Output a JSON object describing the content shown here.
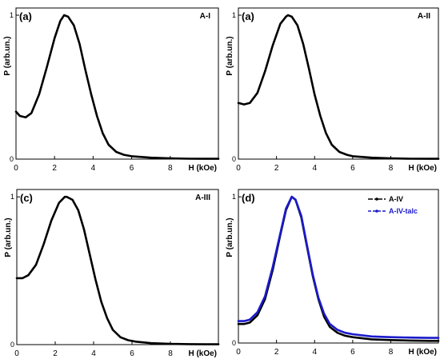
{
  "chart_data": [
    {
      "type": "line",
      "panel_label": "(a)",
      "sample_label": "A-I",
      "xlabel": "H (kOe)",
      "ylabel": "P (arb.un.)",
      "x_ticks": [
        "0",
        "2",
        "4",
        "6",
        "8"
      ],
      "y_ticks": [
        "0",
        "1"
      ],
      "xlim": [
        0,
        10.5
      ],
      "ylim": [
        0,
        1.05
      ],
      "legend": "none",
      "series": [
        {
          "color": "#000000",
          "points": [
            [
              0,
              0.33
            ],
            [
              0.2,
              0.3
            ],
            [
              0.5,
              0.29
            ],
            [
              0.8,
              0.32
            ],
            [
              1.2,
              0.45
            ],
            [
              1.6,
              0.64
            ],
            [
              2.0,
              0.84
            ],
            [
              2.3,
              0.96
            ],
            [
              2.5,
              1.0
            ],
            [
              2.7,
              0.99
            ],
            [
              3.0,
              0.93
            ],
            [
              3.3,
              0.8
            ],
            [
              3.6,
              0.62
            ],
            [
              3.9,
              0.45
            ],
            [
              4.2,
              0.3
            ],
            [
              4.5,
              0.18
            ],
            [
              4.8,
              0.1
            ],
            [
              5.2,
              0.05
            ],
            [
              5.6,
              0.03
            ],
            [
              6.0,
              0.02
            ],
            [
              7.0,
              0.01
            ],
            [
              8.0,
              0.005
            ],
            [
              9.0,
              0.003
            ],
            [
              10.0,
              0.002
            ],
            [
              10.5,
              0.002
            ]
          ]
        }
      ]
    },
    {
      "type": "line",
      "panel_label": "(a)",
      "sample_label": "A-II",
      "xlabel": "H (kOe)",
      "ylabel": "P (arb.un.)",
      "x_ticks": [
        "0",
        "2",
        "4",
        "6",
        "8"
      ],
      "y_ticks": [
        "0",
        "1"
      ],
      "xlim": [
        0,
        10.5
      ],
      "ylim": [
        0,
        1.05
      ],
      "legend": "none",
      "series": [
        {
          "color": "#000000",
          "points": [
            [
              0,
              0.39
            ],
            [
              0.3,
              0.38
            ],
            [
              0.6,
              0.39
            ],
            [
              1.0,
              0.46
            ],
            [
              1.4,
              0.61
            ],
            [
              1.8,
              0.79
            ],
            [
              2.2,
              0.94
            ],
            [
              2.5,
              0.99
            ],
            [
              2.6,
              1.0
            ],
            [
              2.8,
              0.99
            ],
            [
              3.1,
              0.93
            ],
            [
              3.4,
              0.8
            ],
            [
              3.7,
              0.63
            ],
            [
              4.0,
              0.45
            ],
            [
              4.3,
              0.3
            ],
            [
              4.6,
              0.18
            ],
            [
              4.9,
              0.1
            ],
            [
              5.3,
              0.05
            ],
            [
              5.7,
              0.03
            ],
            [
              6.0,
              0.02
            ],
            [
              7.0,
              0.01
            ],
            [
              8.0,
              0.005
            ],
            [
              9.0,
              0.003
            ],
            [
              10.0,
              0.002
            ],
            [
              10.5,
              0.002
            ]
          ]
        }
      ]
    },
    {
      "type": "line",
      "panel_label": "(c)",
      "sample_label": "A-III",
      "xlabel": "H (kOe)",
      "ylabel": "P (arb.un.)",
      "x_ticks": [
        "0",
        "2",
        "4",
        "6",
        "8"
      ],
      "y_ticks": [
        "0",
        "1"
      ],
      "xlim": [
        0,
        10.5
      ],
      "ylim": [
        0,
        1.05
      ],
      "legend": "none",
      "series": [
        {
          "color": "#000000",
          "points": [
            [
              0,
              0.45
            ],
            [
              0.3,
              0.45
            ],
            [
              0.6,
              0.47
            ],
            [
              1.0,
              0.54
            ],
            [
              1.4,
              0.68
            ],
            [
              1.8,
              0.84
            ],
            [
              2.2,
              0.96
            ],
            [
              2.5,
              1.0
            ],
            [
              2.6,
              1.0
            ],
            [
              2.9,
              0.98
            ],
            [
              3.2,
              0.91
            ],
            [
              3.5,
              0.78
            ],
            [
              3.8,
              0.61
            ],
            [
              4.1,
              0.44
            ],
            [
              4.4,
              0.29
            ],
            [
              4.7,
              0.18
            ],
            [
              5.0,
              0.1
            ],
            [
              5.4,
              0.05
            ],
            [
              5.8,
              0.03
            ],
            [
              6.2,
              0.02
            ],
            [
              7.0,
              0.01
            ],
            [
              8.0,
              0.005
            ],
            [
              9.0,
              0.003
            ],
            [
              10.0,
              0.002
            ],
            [
              10.5,
              0.002
            ]
          ]
        }
      ]
    },
    {
      "type": "line",
      "panel_label": "(d)",
      "sample_label": "",
      "xlabel": "H (kOe)",
      "ylabel": "P (arb.un.)",
      "x_ticks": [
        "0",
        "2",
        "4",
        "6",
        "8"
      ],
      "y_ticks": [
        "0",
        "1"
      ],
      "xlim": [
        0,
        10.5
      ],
      "ylim": [
        0,
        1.05
      ],
      "legend": "top-right",
      "series": [
        {
          "name": "A-IV",
          "color": "#000000",
          "points": [
            [
              0,
              0.13
            ],
            [
              0.3,
              0.13
            ],
            [
              0.6,
              0.14
            ],
            [
              1.0,
              0.19
            ],
            [
              1.4,
              0.3
            ],
            [
              1.8,
              0.5
            ],
            [
              2.2,
              0.74
            ],
            [
              2.5,
              0.91
            ],
            [
              2.8,
              1.0
            ],
            [
              3.0,
              0.98
            ],
            [
              3.3,
              0.86
            ],
            [
              3.6,
              0.66
            ],
            [
              3.9,
              0.46
            ],
            [
              4.2,
              0.3
            ],
            [
              4.5,
              0.18
            ],
            [
              4.8,
              0.11
            ],
            [
              5.2,
              0.07
            ],
            [
              5.6,
              0.05
            ],
            [
              6.0,
              0.04
            ],
            [
              7.0,
              0.025
            ],
            [
              8.0,
              0.02
            ],
            [
              9.0,
              0.017
            ],
            [
              10.0,
              0.015
            ],
            [
              10.5,
              0.015
            ]
          ]
        },
        {
          "name": "A-IV-talc",
          "color": "#1a1acc",
          "points": [
            [
              0,
              0.15
            ],
            [
              0.3,
              0.15
            ],
            [
              0.6,
              0.16
            ],
            [
              1.0,
              0.21
            ],
            [
              1.4,
              0.32
            ],
            [
              1.8,
              0.52
            ],
            [
              2.2,
              0.75
            ],
            [
              2.5,
              0.92
            ],
            [
              2.8,
              1.0
            ],
            [
              3.0,
              0.98
            ],
            [
              3.3,
              0.87
            ],
            [
              3.6,
              0.67
            ],
            [
              3.9,
              0.47
            ],
            [
              4.2,
              0.31
            ],
            [
              4.5,
              0.2
            ],
            [
              4.8,
              0.13
            ],
            [
              5.2,
              0.09
            ],
            [
              5.6,
              0.07
            ],
            [
              6.0,
              0.06
            ],
            [
              7.0,
              0.045
            ],
            [
              8.0,
              0.04
            ],
            [
              9.0,
              0.037
            ],
            [
              10.0,
              0.035
            ],
            [
              10.5,
              0.035
            ]
          ]
        }
      ]
    }
  ]
}
